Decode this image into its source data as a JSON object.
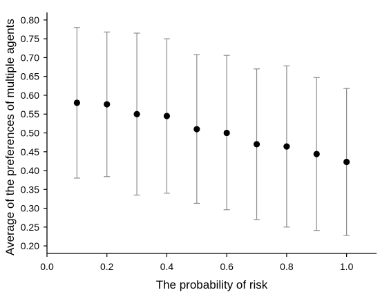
{
  "chart_data": {
    "type": "scatter",
    "title": "",
    "xlabel": "The probability of risk",
    "ylabel": "Average of the preferences of multiple agents",
    "xlim": [
      0.0,
      1.1
    ],
    "ylim": [
      0.18,
      0.82
    ],
    "x_ticks": [
      "0.0",
      "0.2",
      "0.4",
      "0.6",
      "0.8",
      "1.0"
    ],
    "y_ticks": [
      "0.20",
      "0.25",
      "0.30",
      "0.35",
      "0.40",
      "0.45",
      "0.50",
      "0.55",
      "0.60",
      "0.65",
      "0.70",
      "0.75",
      "0.80"
    ],
    "grid": false,
    "legend": "none",
    "series": [
      {
        "x": [
          0.1,
          0.2,
          0.3,
          0.4,
          0.5,
          0.6,
          0.7,
          0.8,
          0.9,
          1.0
        ],
        "y": [
          0.58,
          0.576,
          0.55,
          0.545,
          0.51,
          0.5,
          0.47,
          0.464,
          0.444,
          0.423
        ],
        "err_low": [
          0.38,
          0.384,
          0.335,
          0.34,
          0.313,
          0.296,
          0.27,
          0.25,
          0.241,
          0.228
        ],
        "err_high": [
          0.78,
          0.768,
          0.765,
          0.75,
          0.708,
          0.706,
          0.67,
          0.678,
          0.647,
          0.618
        ],
        "color": "#000000",
        "error_color": "#8c8c8c"
      }
    ]
  }
}
